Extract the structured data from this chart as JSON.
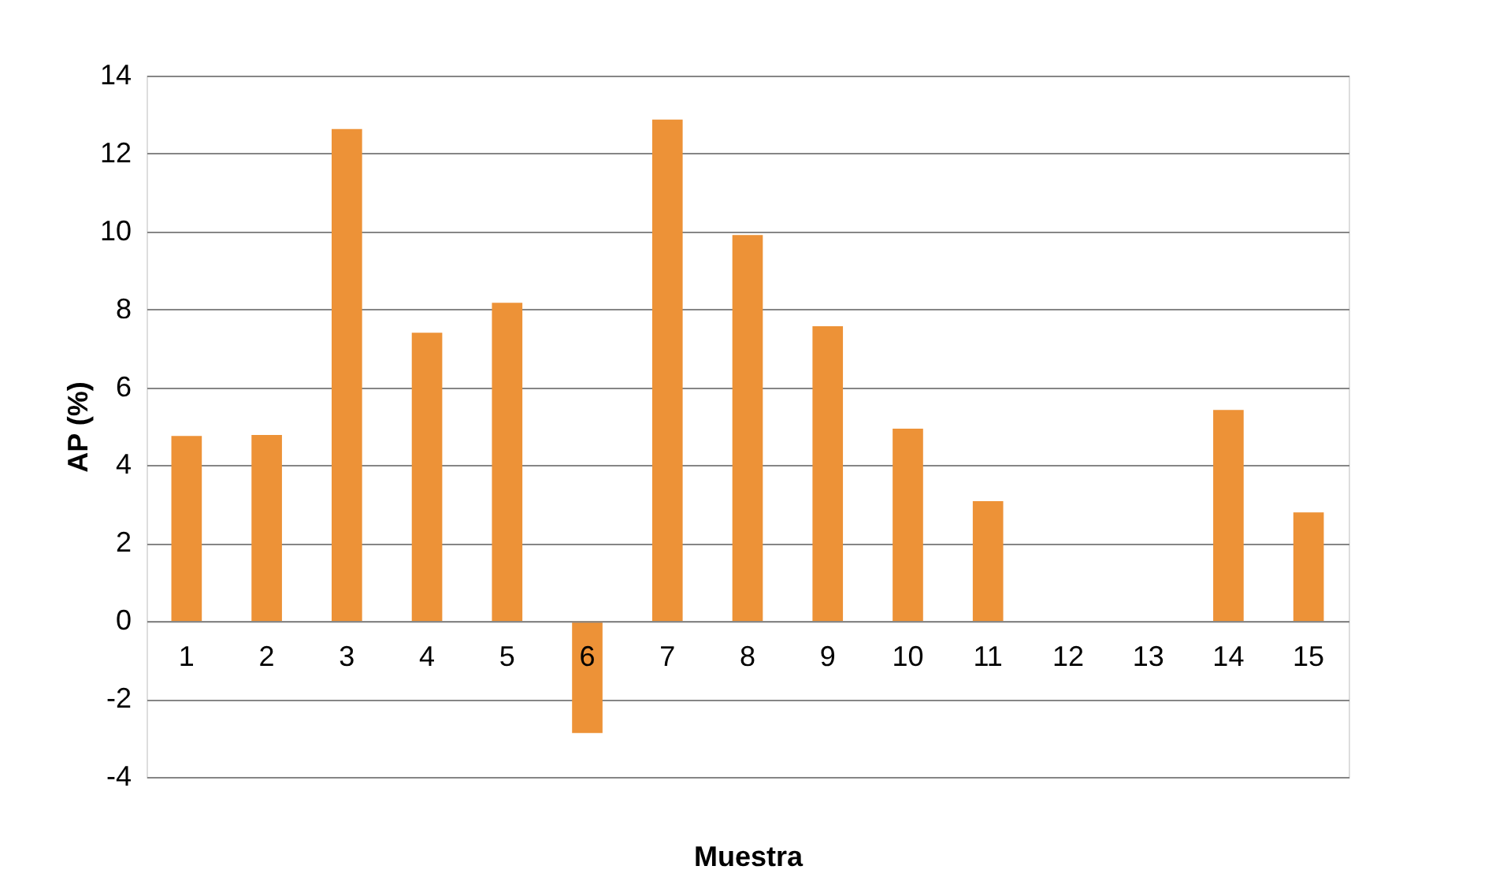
{
  "chart_data": {
    "type": "bar",
    "xlabel": "Muestra",
    "ylabel": "AP (%)",
    "categories": [
      "1",
      "2",
      "3",
      "4",
      "5",
      "6",
      "7",
      "8",
      "9",
      "10",
      "11",
      "12",
      "13",
      "14",
      "15"
    ],
    "values": [
      4.75,
      4.78,
      12.63,
      7.4,
      8.17,
      -2.87,
      12.87,
      9.91,
      7.57,
      4.94,
      3.08,
      0,
      0,
      5.42,
      2.79
    ],
    "color": "#ed9237",
    "ylim": [
      -4,
      14
    ],
    "yticks": [
      -4,
      -2,
      0,
      2,
      4,
      6,
      8,
      10,
      12,
      14
    ],
    "grid": "y"
  }
}
